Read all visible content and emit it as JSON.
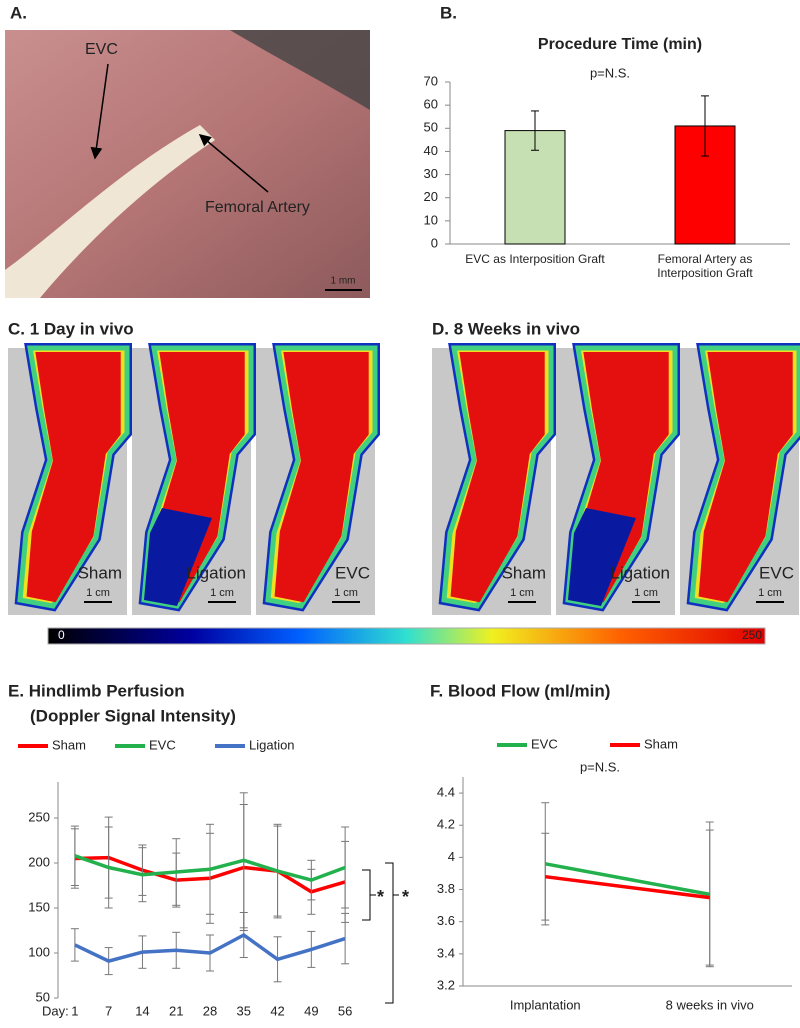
{
  "panel_labels": {
    "a": "A.",
    "b": "B."
  },
  "photo": {
    "labels": [
      "EVC",
      "Femoral Artery"
    ],
    "scale": "1 mm"
  },
  "doppler": [
    {
      "title": "C.  1 Day in vivo",
      "images": [
        "Sham",
        "Ligation",
        "EVC"
      ],
      "scale": "1 cm"
    },
    {
      "title": "D.  8 Weeks in vivo",
      "images": [
        "Sham",
        "Ligation",
        "EVC"
      ],
      "scale": "1 cm"
    }
  ],
  "colorbar": {
    "min": 0,
    "max": 250
  },
  "chart_data": [
    {
      "type": "bar",
      "title": "Procedure Time (min)",
      "annotation": "p=N.S.",
      "categories": [
        "EVC as Interposition Graft",
        "Femoral Artery as Interposition Graft"
      ],
      "values": [
        49,
        51
      ],
      "errors": [
        8.5,
        13
      ],
      "colors": [
        "#c6e0b4",
        "#ff0000"
      ],
      "ylim": [
        0,
        70
      ],
      "yticks": [
        0,
        10,
        20,
        30,
        40,
        50,
        60,
        70
      ]
    },
    {
      "type": "line",
      "title": "E.  Hindlimb Perfusion",
      "subtitle": "(Doppler Signal Intensity)",
      "xlabel": "Day:",
      "annotations": [
        "*",
        "*"
      ],
      "categories": [
        "1",
        "7",
        "14",
        "21",
        "28",
        "35",
        "42",
        "49",
        "56"
      ],
      "series": [
        {
          "name": "Sham",
          "color": "#ff0000",
          "values": [
            205,
            206,
            192,
            181,
            183,
            195,
            191,
            168,
            179
          ],
          "errors": [
            33,
            45,
            28,
            30,
            50,
            70,
            50,
            25,
            45
          ]
        },
        {
          "name": "EVC",
          "color": "#22b14c",
          "values": [
            208,
            195,
            187,
            190,
            193,
            203,
            191,
            181,
            195
          ],
          "errors": [
            33,
            45,
            30,
            37,
            50,
            75,
            52,
            22,
            45
          ]
        },
        {
          "name": "Ligation",
          "color": "#4472c4",
          "values": [
            109,
            91,
            101,
            103,
            100,
            120,
            93,
            104,
            116
          ],
          "errors": [
            18,
            15,
            18,
            20,
            20,
            25,
            25,
            20,
            28
          ]
        }
      ],
      "ylim": [
        50,
        290
      ],
      "yticks": [
        50,
        100,
        150,
        200,
        250
      ]
    },
    {
      "type": "line",
      "title": "F.  Blood Flow (ml/min)",
      "annotation": "p=N.S.",
      "categories": [
        "Implantation",
        "8 weeks in vivo"
      ],
      "series": [
        {
          "name": "EVC",
          "color": "#22b14c",
          "values": [
            3.96,
            3.77
          ],
          "errors": [
            0.38,
            0.45
          ]
        },
        {
          "name": "Sham",
          "color": "#ff0000",
          "values": [
            3.88,
            3.75
          ],
          "errors": [
            0.27,
            0.42
          ]
        }
      ],
      "ylim": [
        3.2,
        4.5
      ],
      "yticks": [
        3.2,
        3.4,
        3.6,
        3.8,
        4,
        4.2,
        4.4
      ]
    }
  ]
}
